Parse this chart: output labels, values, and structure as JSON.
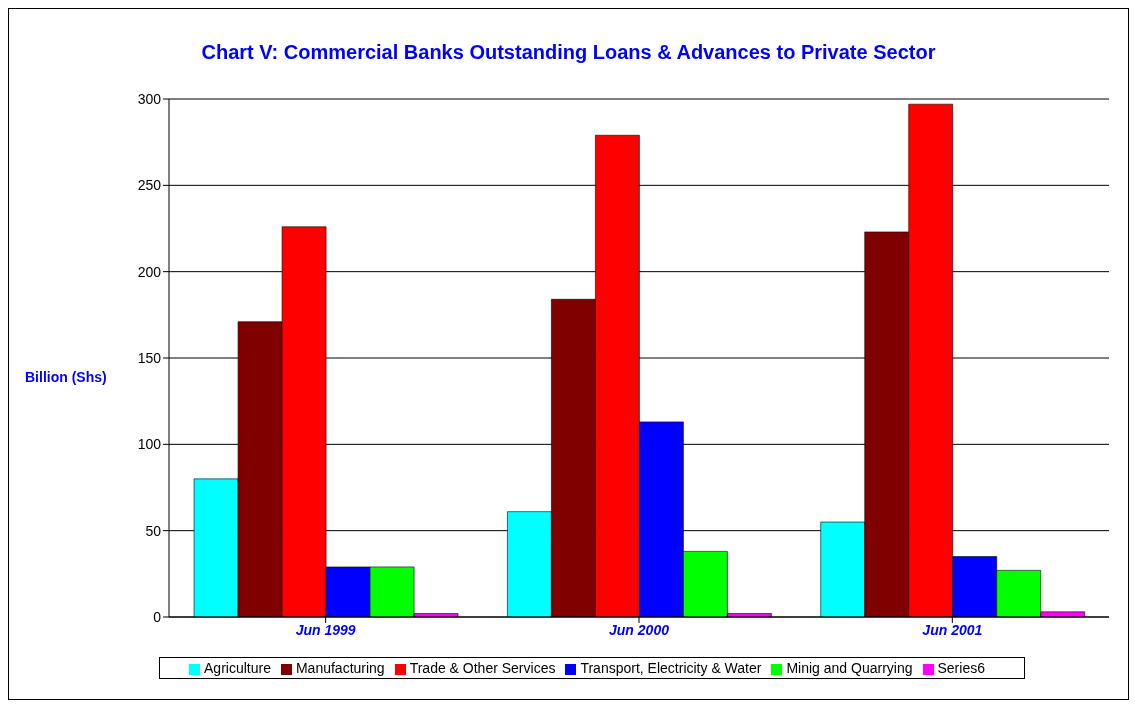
{
  "chart_data": {
    "type": "bar",
    "title": "Chart V: Commercial Banks Outstanding Loans & Advances to Private Sector",
    "ylabel": "Billion (Shs)",
    "categories": [
      "Jun 1999",
      "Jun 2000",
      "Jun 2001"
    ],
    "series": [
      {
        "name": "Agriculture",
        "color": "#00ffff",
        "values": [
          80,
          61,
          55
        ]
      },
      {
        "name": "Manufacturing",
        "color": "#800000",
        "values": [
          171,
          184,
          223
        ]
      },
      {
        "name": "Trade & Other Services",
        "color": "#ff0000",
        "values": [
          226,
          279,
          297
        ]
      },
      {
        "name": "Transport, Electricity & Water",
        "color": "#0000ff",
        "values": [
          29,
          113,
          35
        ]
      },
      {
        "name": "Minig and Quarrying",
        "color": "#00ff00",
        "values": [
          29,
          38,
          27
        ]
      },
      {
        "name": "Series6",
        "color": "#ff00ff",
        "values": [
          2,
          2,
          3
        ]
      }
    ],
    "ylim": [
      0,
      300
    ],
    "yticks": [
      0,
      50,
      100,
      150,
      200,
      250,
      300
    ],
    "grid": "y",
    "legend": "bottom"
  }
}
